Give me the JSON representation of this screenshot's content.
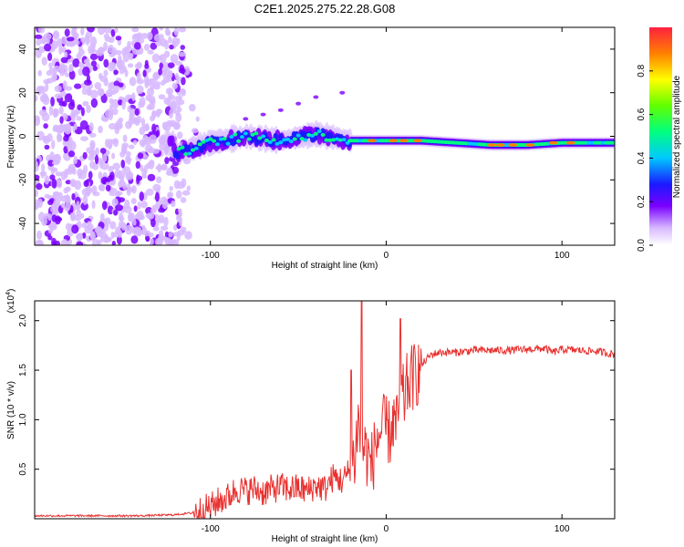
{
  "title": "C2E1.2025.275.22.28.G08",
  "chart_data": [
    {
      "type": "heatmap",
      "name": "spectrogram",
      "xlabel": "Height of straight line (km)",
      "ylabel": "Frequency (Hz)",
      "xlim": [
        -200,
        130
      ],
      "ylim": [
        -50,
        50
      ],
      "xticks": [
        -100,
        0,
        100
      ],
      "xtick_labels": [
        "-100",
        "0",
        "100"
      ],
      "yticks": [
        -40,
        -20,
        0,
        20,
        40
      ],
      "ytick_labels": [
        "-40",
        "-20",
        "0",
        "20",
        "40"
      ],
      "colorbar": {
        "label": "Normalized spectral amplitude",
        "range": [
          0,
          1
        ],
        "ticks": [
          0.0,
          0.2,
          0.4,
          0.6,
          0.8
        ],
        "tick_labels": [
          "0.0",
          "0.2",
          "0.4",
          "0.6",
          "0.8"
        ]
      },
      "regions": [
        {
          "description": "scattered noise",
          "x": [
            -200,
            -115
          ],
          "freq": [
            -50,
            50
          ],
          "amplitude": 0.1
        },
        {
          "description": "signal band",
          "x": [
            -125,
            130
          ],
          "center_freq": [
            [
              -120,
              -8
            ],
            [
              -100,
              -3
            ],
            [
              -80,
              0
            ],
            [
              -60,
              -2
            ],
            [
              -40,
              1
            ],
            [
              -20,
              -2
            ],
            [
              0,
              -2
            ],
            [
              20,
              -2
            ],
            [
              40,
              -3
            ],
            [
              60,
              -4
            ],
            [
              80,
              -4
            ],
            [
              100,
              -3
            ],
            [
              130,
              -3
            ]
          ],
          "amplitude": 0.9
        }
      ]
    },
    {
      "type": "line",
      "name": "snr",
      "xlabel": "Height of straight line (km)",
      "ylabel": "SNR (10 * v/v)",
      "scale_label": "(x10",
      "scale_exp": "4",
      "scale_close": ")",
      "xlim": [
        -200,
        130
      ],
      "ylim": [
        0,
        2.2
      ],
      "xticks": [
        -100,
        0,
        100
      ],
      "xtick_labels": [
        "-100",
        "0",
        "100"
      ],
      "yticks": [
        0.5,
        1.0,
        1.5,
        2.0
      ],
      "ytick_labels": [
        "0.5",
        "1.0",
        "1.5",
        "2.0"
      ],
      "series": [
        {
          "name": "SNR",
          "color": "#e8312f",
          "x": [
            -200,
            -180,
            -160,
            -140,
            -120,
            -110,
            -100,
            -95,
            -90,
            -85,
            -80,
            -75,
            -70,
            -65,
            -60,
            -55,
            -50,
            -45,
            -40,
            -35,
            -30,
            -27,
            -25,
            -22,
            -20,
            -18,
            -16,
            -14,
            -12,
            -10,
            -8,
            -6,
            -4,
            -2,
            0,
            2,
            4,
            6,
            8,
            10,
            12,
            14,
            16,
            18,
            20,
            25,
            30,
            40,
            50,
            60,
            70,
            80,
            90,
            95,
            100,
            110,
            120,
            130
          ],
          "y": [
            0.03,
            0.03,
            0.03,
            0.03,
            0.04,
            0.06,
            0.12,
            0.18,
            0.22,
            0.3,
            0.28,
            0.3,
            0.27,
            0.3,
            0.32,
            0.3,
            0.31,
            0.28,
            0.34,
            0.3,
            0.42,
            0.4,
            0.38,
            0.45,
            0.55,
            0.6,
            1.0,
            0.75,
            0.7,
            0.6,
            0.55,
            0.75,
            0.85,
            0.9,
            0.92,
            0.85,
            1.0,
            0.9,
            1.3,
            1.2,
            1.35,
            1.4,
            1.45,
            1.48,
            1.55,
            1.65,
            1.68,
            1.68,
            1.7,
            1.7,
            1.7,
            1.71,
            1.72,
            1.68,
            1.71,
            1.7,
            1.69,
            1.66
          ]
        }
      ]
    }
  ]
}
